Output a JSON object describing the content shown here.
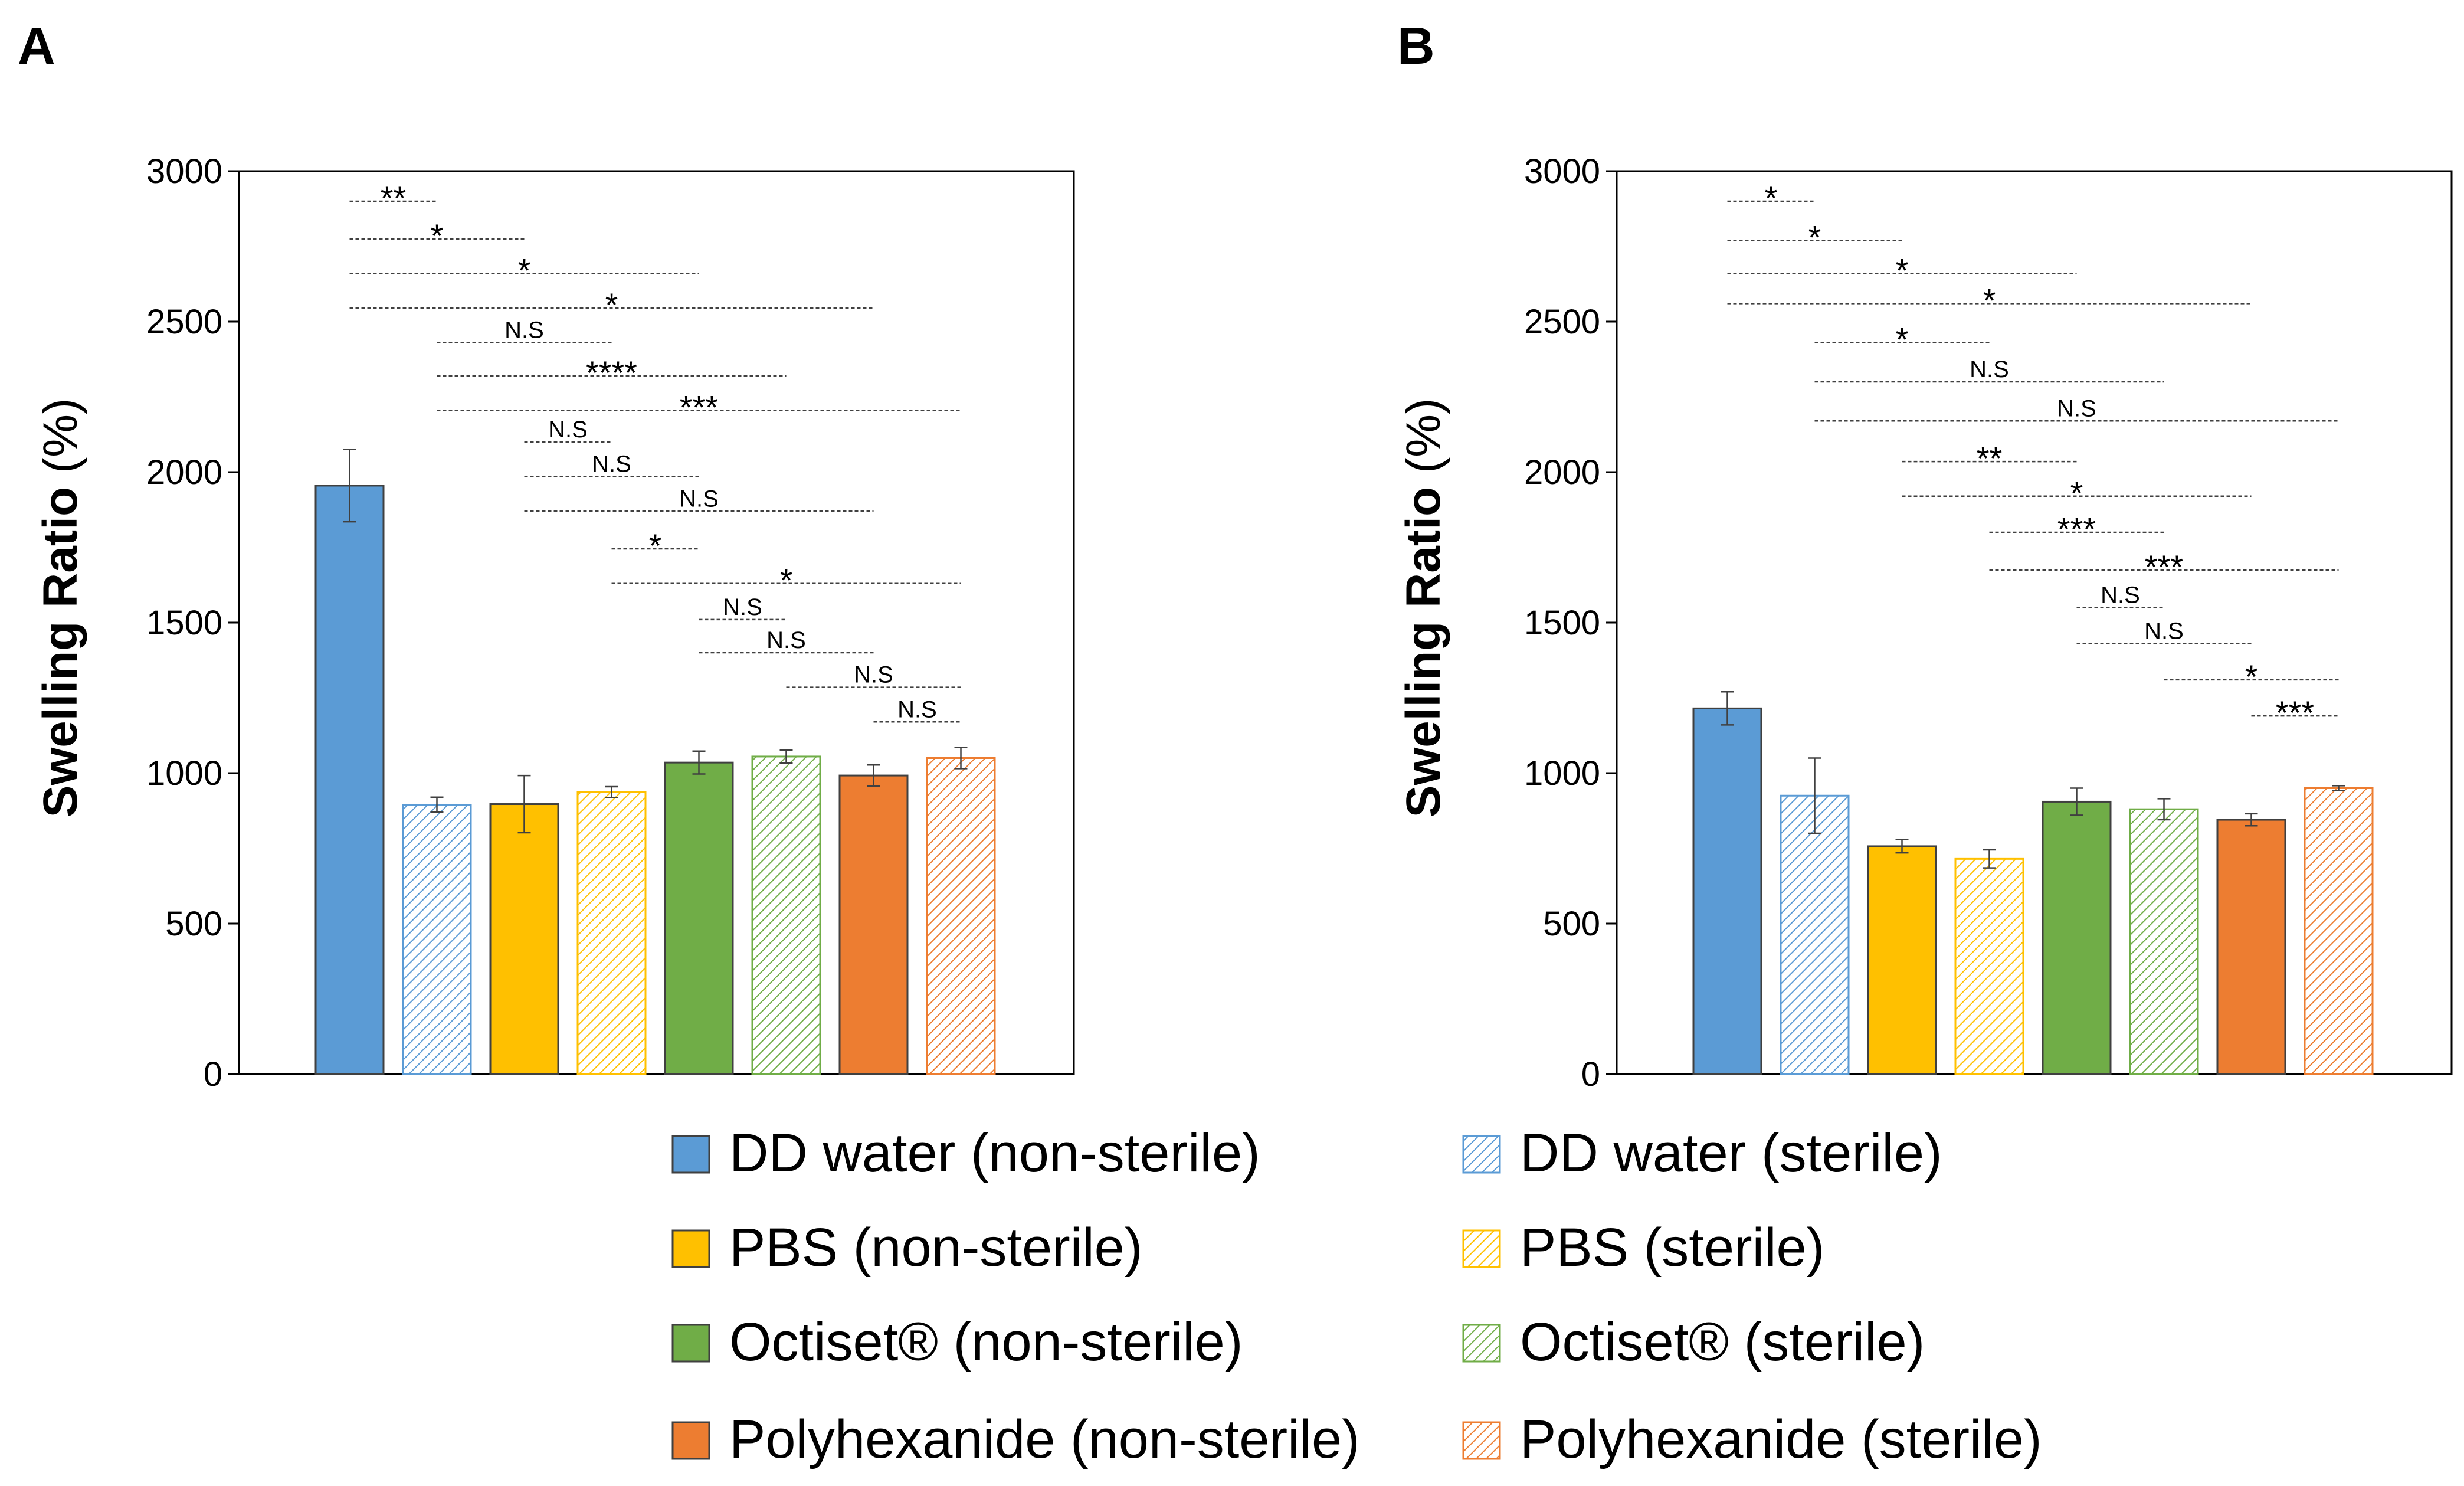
{
  "legend": [
    {
      "label": "DD water (non-sterile)",
      "color": "#5b9bd5",
      "pattern": false
    },
    {
      "label": "DD water (sterile)",
      "color": "#5b9bd5",
      "pattern": true
    },
    {
      "label": "PBS (non-sterile)",
      "color": "#ffc000",
      "pattern": false
    },
    {
      "label": "PBS (sterile)",
      "color": "#ffc000",
      "pattern": true
    },
    {
      "label": "Octiset® (non-sterile)",
      "color": "#70ad47",
      "pattern": false
    },
    {
      "label": "Octiset® (sterile)",
      "color": "#70ad47",
      "pattern": true
    },
    {
      "label": "Polyhexanide (non-sterile)",
      "color": "#ed7d31",
      "pattern": false
    },
    {
      "label": "Polyhexanide (sterile)",
      "color": "#ed7d31",
      "pattern": true
    }
  ],
  "chart_data": [
    {
      "panel": "A",
      "type": "bar",
      "ylabel": "Swelling Ratio",
      "ylabel_unit": "(%)",
      "ylim": [
        0,
        3000
      ],
      "yticks": [
        0,
        500,
        1000,
        1500,
        2000,
        2500,
        3000
      ],
      "categories": [
        "DD water (non-sterile)",
        "DD water (sterile)",
        "PBS (non-sterile)",
        "PBS (sterile)",
        "Octiset® (non-sterile)",
        "Octiset® (sterile)",
        "Polyhexanide (non-sterile)",
        "Polyhexanide (sterile)"
      ],
      "values": [
        1955,
        895,
        897,
        937,
        1035,
        1055,
        992,
        1050
      ],
      "errors": [
        120,
        25,
        95,
        18,
        38,
        22,
        35,
        35
      ],
      "significance": [
        {
          "from": 1,
          "to": 2,
          "label": "**",
          "level": 2900
        },
        {
          "from": 1,
          "to": 3,
          "label": "*",
          "level": 2775
        },
        {
          "from": 1,
          "to": 5,
          "label": "*",
          "level": 2660
        },
        {
          "from": 1,
          "to": 7,
          "label": "*",
          "level": 2545
        },
        {
          "from": 2,
          "to": 4,
          "label": "N.S",
          "level": 2430
        },
        {
          "from": 2,
          "to": 6,
          "label": "****",
          "level": 2320
        },
        {
          "from": 2,
          "to": 8,
          "label": "***",
          "level": 2205
        },
        {
          "from": 3,
          "to": 4,
          "label": "N.S",
          "level": 2100
        },
        {
          "from": 3,
          "to": 5,
          "label": "N.S",
          "level": 1985
        },
        {
          "from": 3,
          "to": 7,
          "label": "N.S",
          "level": 1870
        },
        {
          "from": 4,
          "to": 5,
          "label": "*",
          "level": 1745
        },
        {
          "from": 4,
          "to": 8,
          "label": "*",
          "level": 1630
        },
        {
          "from": 5,
          "to": 6,
          "label": "N.S",
          "level": 1510
        },
        {
          "from": 5,
          "to": 7,
          "label": "N.S",
          "level": 1400
        },
        {
          "from": 6,
          "to": 8,
          "label": "N.S",
          "level": 1285
        },
        {
          "from": 7,
          "to": 8,
          "label": "N.S",
          "level": 1170
        }
      ]
    },
    {
      "panel": "B",
      "type": "bar",
      "ylabel": "Swelling Ratio",
      "ylabel_unit": "(%)",
      "ylim": [
        0,
        3000
      ],
      "yticks": [
        0,
        500,
        1000,
        1500,
        2000,
        2500,
        3000
      ],
      "categories": [
        "DD water (non-sterile)",
        "DD water (sterile)",
        "PBS (non-sterile)",
        "PBS (sterile)",
        "Octiset® (non-sterile)",
        "Octiset® (sterile)",
        "Polyhexanide (non-sterile)",
        "Polyhexanide (sterile)"
      ],
      "values": [
        1215,
        925,
        757,
        715,
        905,
        880,
        845,
        950
      ],
      "errors": [
        55,
        125,
        22,
        30,
        45,
        35,
        20,
        8
      ],
      "significance": [
        {
          "from": 1,
          "to": 2,
          "label": "*",
          "level": 2900
        },
        {
          "from": 1,
          "to": 3,
          "label": "*",
          "level": 2770
        },
        {
          "from": 1,
          "to": 5,
          "label": "*",
          "level": 2660
        },
        {
          "from": 1,
          "to": 7,
          "label": "*",
          "level": 2560
        },
        {
          "from": 2,
          "to": 4,
          "label": "*",
          "level": 2430
        },
        {
          "from": 2,
          "to": 6,
          "label": "N.S",
          "level": 2300
        },
        {
          "from": 2,
          "to": 8,
          "label": "N.S",
          "level": 2170
        },
        {
          "from": 3,
          "to": 5,
          "label": "**",
          "level": 2035
        },
        {
          "from": 3,
          "to": 7,
          "label": "*",
          "level": 1920
        },
        {
          "from": 4,
          "to": 6,
          "label": "***",
          "level": 1800
        },
        {
          "from": 4,
          "to": 8,
          "label": "***",
          "level": 1675
        },
        {
          "from": 5,
          "to": 6,
          "label": "N.S",
          "level": 1550
        },
        {
          "from": 5,
          "to": 7,
          "label": "N.S",
          "level": 1430
        },
        {
          "from": 6,
          "to": 8,
          "label": "*",
          "level": 1310
        },
        {
          "from": 7,
          "to": 8,
          "label": "***",
          "level": 1190
        }
      ]
    }
  ]
}
